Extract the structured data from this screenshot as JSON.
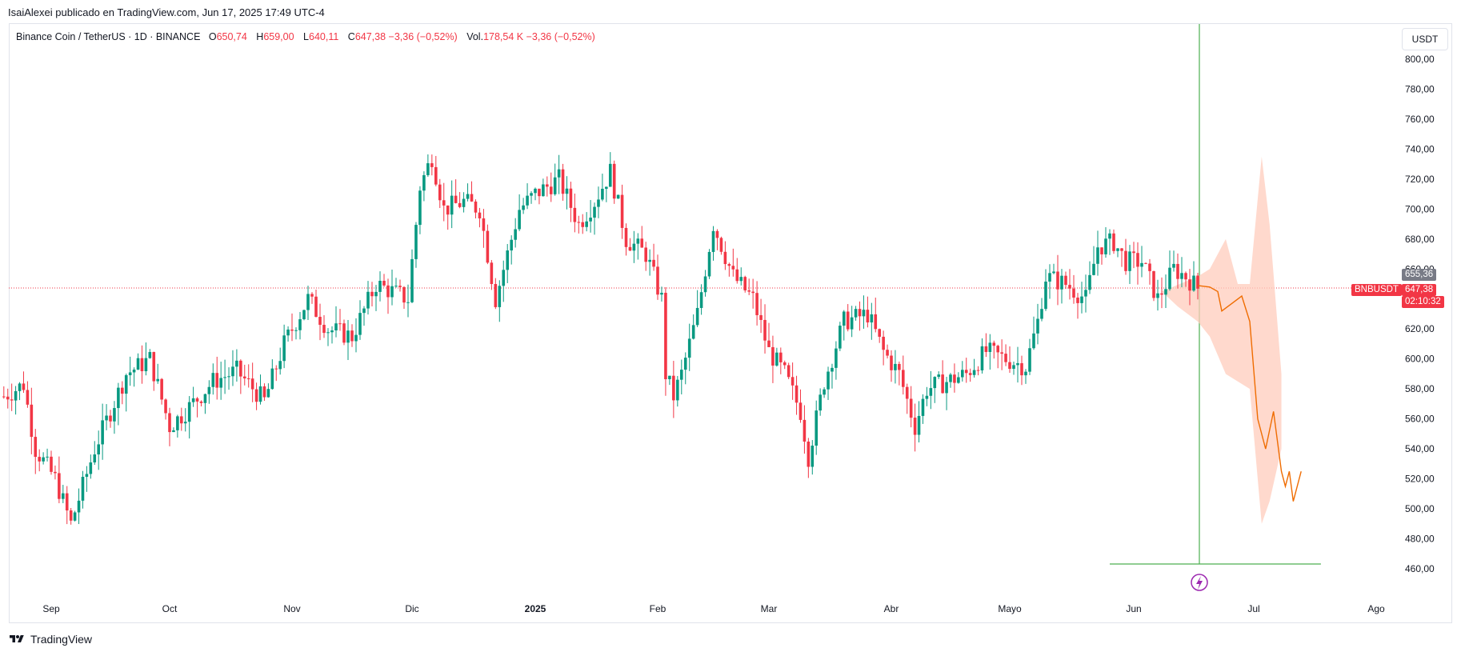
{
  "publish_line": "IsaiAlexei publicado en TradingView.com, Jun 17, 2025 17:49 UTC-4",
  "legend": {
    "symbol": "Binance Coin / TetherUS · 1D · BINANCE",
    "o_label": "O",
    "o_value": "650,74",
    "h_label": "H",
    "h_value": "659,00",
    "l_label": "L",
    "l_value": "640,11",
    "c_label": "C",
    "c_value": "647,38",
    "change": "−3,36 (−0,52%)",
    "vol_label": "Vol.",
    "vol_value": "178,54 K",
    "vol_change": "−3,36 (−0,52%)"
  },
  "currency_button": "USDT",
  "price_badges": {
    "last_high": "655,36",
    "ticker": "BNBUSDT",
    "last_price": "647,38",
    "countdown": "02:10:32"
  },
  "footer": {
    "brand": "TradingView",
    "logo_icon": "tradingview-logo-icon"
  },
  "colors": {
    "up": "#089981",
    "down": "#f23645",
    "projection": "#ef6c00",
    "band": "#ffccbc",
    "vline": "#4caf50"
  },
  "chart_data": {
    "type": "candlestick",
    "symbol": "BNBUSDT",
    "interval": "1D",
    "y_ticks": [
      "460,00",
      "480,00",
      "500,00",
      "520,00",
      "540,00",
      "560,00",
      "580,00",
      "600,00",
      "620,00",
      "640,00",
      "660,00",
      "680,00",
      "700,00",
      "720,00",
      "740,00",
      "760,00",
      "780,00",
      "800,00"
    ],
    "ylim": [
      455,
      805
    ],
    "x_ticks": [
      "Sep",
      "Oct",
      "Nov",
      "Dic",
      "2025",
      "Feb",
      "Mar",
      "Abr",
      "Mayo",
      "Jun",
      "Jul",
      "Ago"
    ],
    "last_price": 647.38,
    "price_path": [
      [
        "2024-08-20",
        575
      ],
      [
        "2024-08-25",
        583
      ],
      [
        "2024-08-28",
        540
      ],
      [
        "2024-09-02",
        520
      ],
      [
        "2024-09-06",
        490
      ],
      [
        "2024-09-12",
        540
      ],
      [
        "2024-09-20",
        590
      ],
      [
        "2024-09-26",
        600
      ],
      [
        "2024-10-01",
        555
      ],
      [
        "2024-10-05",
        565
      ],
      [
        "2024-10-12",
        585
      ],
      [
        "2024-10-18",
        592
      ],
      [
        "2024-10-25",
        572
      ],
      [
        "2024-10-30",
        610
      ],
      [
        "2024-11-05",
        640
      ],
      [
        "2024-11-10",
        620
      ],
      [
        "2024-11-16",
        615
      ],
      [
        "2024-11-22",
        650
      ],
      [
        "2024-11-30",
        640
      ],
      [
        "2024-12-03",
        715
      ],
      [
        "2024-12-06",
        735
      ],
      [
        "2024-12-09",
        700
      ],
      [
        "2024-12-14",
        705
      ],
      [
        "2024-12-18",
        700
      ],
      [
        "2024-12-22",
        640
      ],
      [
        "2024-12-28",
        700
      ],
      [
        "2025-01-01",
        710
      ],
      [
        "2025-01-07",
        720
      ],
      [
        "2025-01-12",
        690
      ],
      [
        "2025-01-16",
        705
      ],
      [
        "2025-01-20",
        725
      ],
      [
        "2025-01-24",
        680
      ],
      [
        "2025-01-29",
        670
      ],
      [
        "2025-02-02",
        640
      ],
      [
        "2025-02-03",
        590
      ],
      [
        "2025-02-05",
        575
      ],
      [
        "2025-02-07",
        590
      ],
      [
        "2025-02-11",
        630
      ],
      [
        "2025-02-15",
        690
      ],
      [
        "2025-02-20",
        655
      ],
      [
        "2025-02-25",
        640
      ],
      [
        "2025-03-01",
        605
      ],
      [
        "2025-03-05",
        590
      ],
      [
        "2025-03-09",
        565
      ],
      [
        "2025-03-11",
        535
      ],
      [
        "2025-03-15",
        585
      ],
      [
        "2025-03-20",
        625
      ],
      [
        "2025-03-26",
        630
      ],
      [
        "2025-03-30",
        605
      ],
      [
        "2025-04-03",
        590
      ],
      [
        "2025-04-07",
        555
      ],
      [
        "2025-04-10",
        580
      ],
      [
        "2025-04-15",
        585
      ],
      [
        "2025-04-20",
        590
      ],
      [
        "2025-04-25",
        605
      ],
      [
        "2025-04-30",
        600
      ],
      [
        "2025-05-05",
        595
      ],
      [
        "2025-05-08",
        625
      ],
      [
        "2025-05-10",
        655
      ],
      [
        "2025-05-15",
        650
      ],
      [
        "2025-05-20",
        640
      ],
      [
        "2025-05-23",
        675
      ],
      [
        "2025-05-27",
        678
      ],
      [
        "2025-05-30",
        665
      ],
      [
        "2025-06-03",
        665
      ],
      [
        "2025-06-07",
        640
      ],
      [
        "2025-06-11",
        660
      ],
      [
        "2025-06-14",
        655
      ],
      [
        "2025-06-17",
        647.38
      ]
    ],
    "projection": [
      [
        "2025-06-17",
        649
      ],
      [
        "2025-06-20",
        648
      ],
      [
        "2025-06-22",
        645
      ],
      [
        "2025-06-23",
        632
      ],
      [
        "2025-06-25",
        636
      ],
      [
        "2025-06-28",
        642
      ],
      [
        "2025-06-30",
        625
      ],
      [
        "2025-07-02",
        560
      ],
      [
        "2025-07-04",
        540
      ],
      [
        "2025-07-06",
        565
      ],
      [
        "2025-07-08",
        525
      ],
      [
        "2025-07-09",
        515
      ],
      [
        "2025-07-10",
        525
      ],
      [
        "2025-07-11",
        505
      ],
      [
        "2025-07-13",
        525
      ]
    ],
    "projection_band_upper": [
      [
        "2025-06-17",
        655
      ],
      [
        "2025-06-20",
        660
      ],
      [
        "2025-06-24",
        680
      ],
      [
        "2025-06-27",
        650
      ],
      [
        "2025-06-30",
        650
      ],
      [
        "2025-07-03",
        735
      ],
      [
        "2025-07-05",
        690
      ],
      [
        "2025-07-08",
        590
      ]
    ],
    "projection_band_lower": [
      [
        "2025-06-08",
        645
      ],
      [
        "2025-06-12",
        635
      ],
      [
        "2025-06-17",
        625
      ],
      [
        "2025-06-20",
        615
      ],
      [
        "2025-06-24",
        590
      ],
      [
        "2025-06-30",
        580
      ],
      [
        "2025-07-03",
        490
      ],
      [
        "2025-07-05",
        505
      ],
      [
        "2025-07-08",
        540
      ]
    ]
  }
}
